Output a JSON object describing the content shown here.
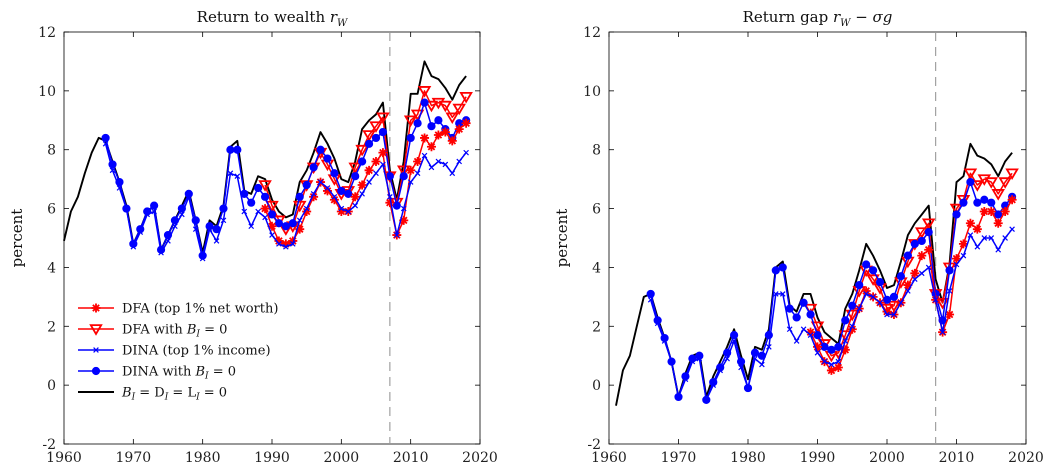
{
  "colors": {
    "dfa": "#ff0000",
    "dfa_b0": "#ff0000",
    "dina": "#0000ff",
    "dina_b0": "#0000ff",
    "zero": "#000000",
    "vline": "#999999"
  },
  "chart_data": [
    {
      "type": "line",
      "title": "Return to wealth r_W",
      "title_main": "Return to wealth ",
      "title_math": "r",
      "title_sub": "W",
      "ylabel": "percent",
      "xlim": [
        1960,
        2020
      ],
      "ylim": [
        -2,
        12
      ],
      "xticks": [
        1960,
        1970,
        1980,
        1990,
        2000,
        2010,
        2020
      ],
      "yticks": [
        -2,
        0,
        2,
        4,
        6,
        8,
        10,
        12
      ],
      "vline_x": 2007,
      "legend": {
        "placement": "bottom-left",
        "entries": [
          {
            "text": "DFA (top 1% net worth)",
            "color": "#ff0000",
            "marker": "star"
          },
          {
            "text": "DFA with ",
            "math": "B",
            "sub": "I",
            "tail": " = 0",
            "color": "#ff0000",
            "marker": "triangle-down"
          },
          {
            "text": "DINA (top 1% income)",
            "color": "#0000ff",
            "marker": "x"
          },
          {
            "text": "DINA with ",
            "math": "B",
            "sub": "I",
            "tail": " = 0",
            "color": "#0000ff",
            "marker": "circle"
          },
          {
            "text": "",
            "math": "B",
            "sub": "I",
            "tail": " = D",
            "sub2": "I",
            "tail2": " = L",
            "sub3": "I",
            "tail3": " = 0",
            "color": "#000000",
            "marker": "none"
          }
        ]
      },
      "series": [
        {
          "key": "zero",
          "color": "#000000",
          "marker": "none",
          "x": [
            1960,
            1961,
            1962,
            1963,
            1964,
            1965,
            1966,
            1967,
            1968,
            1969,
            1970,
            1971,
            1972,
            1973,
            1974,
            1975,
            1976,
            1977,
            1978,
            1979,
            1980,
            1981,
            1982,
            1983,
            1984,
            1985,
            1986,
            1987,
            1988,
            1989,
            1990,
            1991,
            1992,
            1993,
            1994,
            1995,
            1996,
            1997,
            1998,
            1999,
            2000,
            2001,
            2002,
            2003,
            2004,
            2005,
            2006,
            2007,
            2008,
            2009,
            2010,
            2011,
            2012,
            2013,
            2014,
            2015,
            2016,
            2017,
            2018
          ],
          "y": [
            4.9,
            5.9,
            6.4,
            7.2,
            7.9,
            8.4,
            8.3,
            7.6,
            6.9,
            6.1,
            4.8,
            5.3,
            5.9,
            6.1,
            4.6,
            5.1,
            5.6,
            6.1,
            6.6,
            5.6,
            4.5,
            5.6,
            5.4,
            6.1,
            8.1,
            8.3,
            6.6,
            6.5,
            7.1,
            7.0,
            6.3,
            5.9,
            5.7,
            5.8,
            6.9,
            7.3,
            7.9,
            8.6,
            8.2,
            7.7,
            7.0,
            6.9,
            7.6,
            8.7,
            9.0,
            9.2,
            9.6,
            7.3,
            6.3,
            7.6,
            9.9,
            9.9,
            11.0,
            10.5,
            10.4,
            10.1,
            9.7,
            10.2,
            10.5
          ]
        },
        {
          "key": "dfa_b0",
          "color": "#ff0000",
          "marker": "triangle-down",
          "x": [
            1989,
            1990,
            1991,
            1992,
            1993,
            1994,
            1995,
            1996,
            1997,
            1998,
            1999,
            2000,
            2001,
            2002,
            2003,
            2004,
            2005,
            2006,
            2007,
            2008,
            2009,
            2010,
            2011,
            2012,
            2013,
            2014,
            2015,
            2016,
            2017,
            2018
          ],
          "y": [
            6.8,
            6.1,
            5.6,
            5.3,
            5.4,
            6.1,
            6.8,
            7.4,
            7.9,
            7.5,
            7.0,
            6.5,
            6.6,
            7.4,
            8.0,
            8.5,
            8.8,
            9.1,
            7.1,
            6.2,
            7.3,
            9.0,
            9.2,
            10.0,
            9.5,
            9.6,
            9.5,
            9.1,
            9.4,
            9.8
          ]
        },
        {
          "key": "dina_b0",
          "color": "#0000ff",
          "marker": "circle",
          "x": [
            1966,
            1967,
            1968,
            1969,
            1970,
            1971,
            1972,
            1973,
            1974,
            1975,
            1976,
            1977,
            1978,
            1979,
            1980,
            1981,
            1982,
            1983,
            1984,
            1985,
            1986,
            1987,
            1988,
            1989,
            1990,
            1991,
            1992,
            1993,
            1994,
            1995,
            1996,
            1997,
            1998,
            1999,
            2000,
            2001,
            2002,
            2003,
            2004,
            2005,
            2006,
            2007,
            2008,
            2009,
            2010,
            2011,
            2012,
            2013,
            2014,
            2015,
            2016,
            2017,
            2018
          ],
          "y": [
            8.4,
            7.5,
            6.9,
            6.0,
            4.8,
            5.3,
            5.9,
            6.1,
            4.6,
            5.1,
            5.6,
            6.0,
            6.5,
            5.6,
            4.4,
            5.4,
            5.3,
            6.0,
            8.0,
            8.0,
            6.5,
            6.2,
            6.7,
            6.4,
            5.8,
            5.5,
            5.4,
            5.5,
            6.4,
            6.8,
            7.4,
            8.0,
            7.7,
            7.2,
            6.6,
            6.5,
            7.1,
            7.6,
            8.2,
            8.4,
            8.6,
            7.1,
            6.1,
            7.1,
            8.4,
            8.9,
            9.6,
            8.8,
            9.0,
            8.7,
            8.4,
            8.9,
            9.0
          ]
        },
        {
          "key": "dfa",
          "color": "#ff0000",
          "marker": "star",
          "x": [
            1989,
            1990,
            1991,
            1992,
            1993,
            1994,
            1995,
            1996,
            1997,
            1998,
            1999,
            2000,
            2001,
            2002,
            2003,
            2004,
            2005,
            2006,
            2007,
            2008,
            2009,
            2010,
            2011,
            2012,
            2013,
            2014,
            2015,
            2016,
            2017,
            2018
          ],
          "y": [
            6.0,
            5.4,
            4.9,
            4.8,
            4.9,
            5.3,
            5.9,
            6.4,
            6.9,
            6.6,
            6.3,
            5.9,
            5.9,
            6.4,
            6.8,
            7.3,
            7.6,
            7.9,
            6.2,
            5.1,
            5.6,
            7.3,
            7.6,
            8.4,
            8.1,
            8.5,
            8.6,
            8.3,
            8.7,
            8.9
          ]
        },
        {
          "key": "dina",
          "color": "#0000ff",
          "marker": "x",
          "x": [
            1966,
            1967,
            1968,
            1969,
            1970,
            1971,
            1972,
            1973,
            1974,
            1975,
            1976,
            1977,
            1978,
            1979,
            1980,
            1981,
            1982,
            1983,
            1984,
            1985,
            1986,
            1987,
            1988,
            1989,
            1990,
            1991,
            1992,
            1993,
            1994,
            1995,
            1996,
            1997,
            1998,
            1999,
            2000,
            2001,
            2002,
            2003,
            2004,
            2005,
            2006,
            2007,
            2008,
            2009,
            2010,
            2011,
            2012,
            2013,
            2014,
            2015,
            2016,
            2017,
            2018
          ],
          "y": [
            8.2,
            7.3,
            6.7,
            6.0,
            4.7,
            5.2,
            5.8,
            5.9,
            4.5,
            4.9,
            5.4,
            5.8,
            6.4,
            5.3,
            4.3,
            5.3,
            4.9,
            5.6,
            7.2,
            7.1,
            5.9,
            5.4,
            5.9,
            5.7,
            5.1,
            4.8,
            4.7,
            4.8,
            5.6,
            6.0,
            6.5,
            6.9,
            6.7,
            6.4,
            6.0,
            5.9,
            6.1,
            6.5,
            6.9,
            7.2,
            7.5,
            6.4,
            5.1,
            6.0,
            6.9,
            7.2,
            7.8,
            7.4,
            7.6,
            7.5,
            7.2,
            7.6,
            7.9
          ]
        }
      ]
    },
    {
      "type": "line",
      "title": "Return gap r_W − σg",
      "title_main": "Return gap ",
      "title_math": "r",
      "title_sub": "W",
      "title_tail": " − σg",
      "ylabel": "percent",
      "xlim": [
        1960,
        2020
      ],
      "ylim": [
        -2,
        12
      ],
      "xticks": [
        1960,
        1970,
        1980,
        1990,
        2000,
        2010,
        2020
      ],
      "yticks": [
        -2,
        0,
        2,
        4,
        6,
        8,
        10,
        12
      ],
      "vline_x": 2007,
      "series": [
        {
          "key": "zero",
          "color": "#000000",
          "marker": "none",
          "x": [
            1961,
            1962,
            1963,
            1964,
            1965,
            1966,
            1967,
            1968,
            1969,
            1970,
            1971,
            1972,
            1973,
            1974,
            1975,
            1976,
            1977,
            1978,
            1979,
            1980,
            1981,
            1982,
            1983,
            1984,
            1985,
            1986,
            1987,
            1988,
            1989,
            1990,
            1991,
            1992,
            1993,
            1994,
            1995,
            1996,
            1997,
            1998,
            1999,
            2000,
            2001,
            2002,
            2003,
            2004,
            2005,
            2006,
            2007,
            2008,
            2009,
            2010,
            2011,
            2012,
            2013,
            2014,
            2015,
            2016,
            2017,
            2018
          ],
          "y": [
            -0.7,
            0.5,
            1.0,
            2.0,
            3.0,
            3.1,
            2.3,
            1.6,
            0.8,
            -0.4,
            0.4,
            1.0,
            1.1,
            -0.4,
            0.3,
            0.8,
            1.3,
            1.9,
            1.0,
            0.2,
            1.3,
            1.2,
            1.9,
            4.0,
            4.2,
            2.7,
            2.5,
            3.1,
            3.1,
            2.3,
            1.8,
            1.6,
            1.4,
            2.6,
            3.1,
            3.9,
            4.8,
            4.4,
            3.9,
            3.3,
            3.4,
            4.2,
            5.1,
            5.5,
            5.8,
            6.1,
            3.6,
            2.8,
            4.1,
            6.9,
            7.1,
            8.2,
            7.8,
            7.7,
            7.5,
            7.1,
            7.6,
            7.9
          ]
        },
        {
          "key": "dfa_b0",
          "color": "#ff0000",
          "marker": "triangle-down",
          "x": [
            1989,
            1990,
            1991,
            1992,
            1993,
            1994,
            1995,
            1996,
            1997,
            1998,
            1999,
            2000,
            2001,
            2002,
            2003,
            2004,
            2005,
            2006,
            2007,
            2008,
            2009,
            2010,
            2011,
            2012,
            2013,
            2014,
            2015,
            2016,
            2017,
            2018
          ],
          "y": [
            2.6,
            2.0,
            1.4,
            1.0,
            1.1,
            1.7,
            2.4,
            3.2,
            3.9,
            3.6,
            3.3,
            2.6,
            2.7,
            3.5,
            4.2,
            4.8,
            5.2,
            5.5,
            3.1,
            2.8,
            4.0,
            6.0,
            6.3,
            7.2,
            6.8,
            7.0,
            6.9,
            6.5,
            6.9,
            7.2
          ]
        },
        {
          "key": "dina_b0",
          "color": "#0000ff",
          "marker": "circle",
          "x": [
            1966,
            1967,
            1968,
            1969,
            1970,
            1971,
            1972,
            1973,
            1974,
            1975,
            1976,
            1977,
            1978,
            1979,
            1980,
            1981,
            1982,
            1983,
            1984,
            1985,
            1986,
            1987,
            1988,
            1989,
            1990,
            1991,
            1992,
            1993,
            1994,
            1995,
            1996,
            1997,
            1998,
            1999,
            2000,
            2001,
            2002,
            2003,
            2004,
            2005,
            2006,
            2007,
            2008,
            2009,
            2010,
            2011,
            2012,
            2013,
            2014,
            2015,
            2016,
            2017,
            2018
          ],
          "y": [
            3.1,
            2.2,
            1.6,
            0.8,
            -0.4,
            0.3,
            0.9,
            1.0,
            -0.5,
            0.1,
            0.6,
            1.1,
            1.7,
            0.8,
            -0.1,
            1.1,
            1.0,
            1.7,
            3.9,
            4.0,
            2.6,
            2.3,
            2.8,
            2.4,
            1.7,
            1.3,
            1.2,
            1.3,
            2.2,
            2.7,
            3.4,
            4.1,
            3.9,
            3.5,
            2.9,
            3.0,
            3.7,
            4.4,
            4.8,
            4.9,
            5.2,
            3.1,
            2.2,
            3.9,
            5.8,
            6.2,
            6.9,
            6.2,
            6.3,
            6.2,
            5.8,
            6.1,
            6.4
          ]
        },
        {
          "key": "dfa",
          "color": "#ff0000",
          "marker": "star",
          "x": [
            1989,
            1990,
            1991,
            1992,
            1993,
            1994,
            1995,
            1996,
            1997,
            1998,
            1999,
            2000,
            2001,
            2002,
            2003,
            2004,
            2005,
            2006,
            2007,
            2008,
            2009,
            2010,
            2011,
            2012,
            2013,
            2014,
            2015,
            2016,
            2017,
            2018
          ],
          "y": [
            1.8,
            1.3,
            0.8,
            0.5,
            0.6,
            1.2,
            1.9,
            2.6,
            3.2,
            3.0,
            2.8,
            2.5,
            2.4,
            2.8,
            3.4,
            3.8,
            4.4,
            4.6,
            2.9,
            1.8,
            2.4,
            4.3,
            4.8,
            5.5,
            5.3,
            5.9,
            5.9,
            5.5,
            5.9,
            6.3
          ]
        },
        {
          "key": "dina",
          "color": "#0000ff",
          "marker": "x",
          "x": [
            1966,
            1967,
            1968,
            1969,
            1970,
            1971,
            1972,
            1973,
            1974,
            1975,
            1976,
            1977,
            1978,
            1979,
            1980,
            1981,
            1982,
            1983,
            1984,
            1985,
            1986,
            1987,
            1988,
            1989,
            1990,
            1991,
            1992,
            1993,
            1994,
            1995,
            1996,
            1997,
            1998,
            1999,
            2000,
            2001,
            2002,
            2003,
            2004,
            2005,
            2006,
            2007,
            2008,
            2009,
            2010,
            2011,
            2012,
            2013,
            2014,
            2015,
            2016,
            2017,
            2018
          ],
          "y": [
            2.9,
            2.1,
            1.5,
            0.8,
            -0.4,
            0.2,
            0.8,
            0.9,
            -0.5,
            0.0,
            0.5,
            0.9,
            1.5,
            0.6,
            -0.1,
            0.9,
            0.7,
            1.3,
            3.1,
            3.1,
            1.9,
            1.5,
            1.9,
            1.7,
            1.1,
            0.8,
            0.7,
            0.8,
            1.5,
            2.0,
            2.6,
            3.1,
            3.0,
            2.8,
            2.4,
            2.4,
            2.8,
            3.2,
            3.6,
            3.8,
            4.0,
            2.9,
            1.8,
            3.2,
            4.1,
            4.4,
            5.1,
            4.7,
            5.0,
            5.0,
            4.6,
            5.0,
            5.3
          ]
        }
      ]
    }
  ]
}
